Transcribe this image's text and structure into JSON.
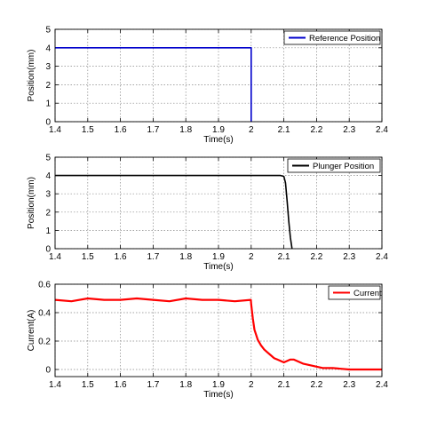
{
  "chart_data": [
    {
      "type": "line",
      "xlabel": "Time(s)",
      "ylabel": "Position(mm)",
      "xlim": [
        1.4,
        2.4
      ],
      "ylim": [
        0,
        5
      ],
      "xticks": [
        "1.4",
        "1.5",
        "1.6",
        "1.7",
        "1.8",
        "1.9",
        "2",
        "2.1",
        "2.2",
        "2.3",
        "2.4"
      ],
      "yticks": [
        "0",
        "1",
        "2",
        "3",
        "4",
        "5"
      ],
      "grid": true,
      "legend_position": "top-right",
      "series": [
        {
          "name": "Reference Position",
          "color": "#0000cc",
          "x": [
            1.4,
            2.0,
            2.0
          ],
          "y": [
            4,
            4,
            0
          ]
        }
      ]
    },
    {
      "type": "line",
      "xlabel": "Time(s)",
      "ylabel": "Position(mm)",
      "xlim": [
        1.4,
        2.4
      ],
      "ylim": [
        0,
        5
      ],
      "xticks": [
        "1.4",
        "1.5",
        "1.6",
        "1.7",
        "1.8",
        "1.9",
        "2",
        "2.1",
        "2.2",
        "2.3",
        "2.4"
      ],
      "yticks": [
        "0",
        "1",
        "2",
        "3",
        "4",
        "5"
      ],
      "grid": true,
      "legend_position": "top-right",
      "series": [
        {
          "name": "Plunger Position",
          "color": "#000000",
          "x": [
            1.4,
            2.0,
            2.09,
            2.1,
            2.105,
            2.11,
            2.115,
            2.12,
            2.125
          ],
          "y": [
            4,
            4,
            4,
            3.95,
            3.6,
            2.6,
            1.5,
            0.6,
            0
          ]
        }
      ]
    },
    {
      "type": "line",
      "xlabel": "Time(s)",
      "ylabel": "Current(A)",
      "xlim": [
        1.4,
        2.4
      ],
      "ylim": [
        -0.05,
        0.6
      ],
      "xticks": [
        "1.4",
        "1.5",
        "1.6",
        "1.7",
        "1.8",
        "1.9",
        "2",
        "2.1",
        "2.2",
        "2.3",
        "2.4"
      ],
      "yticks": [
        "0",
        "0.2",
        "0.4",
        "0.6"
      ],
      "grid": true,
      "legend_position": "top-right",
      "series": [
        {
          "name": "Current",
          "color": "#ff0000",
          "x": [
            1.4,
            1.45,
            1.5,
            1.55,
            1.6,
            1.65,
            1.7,
            1.75,
            1.8,
            1.85,
            1.9,
            1.95,
            1.999,
            2.0,
            2.005,
            2.01,
            2.02,
            2.03,
            2.04,
            2.05,
            2.06,
            2.07,
            2.08,
            2.09,
            2.1,
            2.11,
            2.12,
            2.13,
            2.14,
            2.15,
            2.16,
            2.18,
            2.2,
            2.22,
            2.25,
            2.3,
            2.35,
            2.4
          ],
          "y": [
            0.49,
            0.48,
            0.5,
            0.49,
            0.49,
            0.5,
            0.49,
            0.48,
            0.5,
            0.49,
            0.49,
            0.48,
            0.49,
            0.46,
            0.36,
            0.28,
            0.21,
            0.17,
            0.14,
            0.12,
            0.1,
            0.08,
            0.07,
            0.06,
            0.05,
            0.06,
            0.07,
            0.07,
            0.06,
            0.05,
            0.04,
            0.03,
            0.02,
            0.01,
            0.01,
            0.0,
            0.0,
            0.0
          ]
        }
      ]
    }
  ]
}
